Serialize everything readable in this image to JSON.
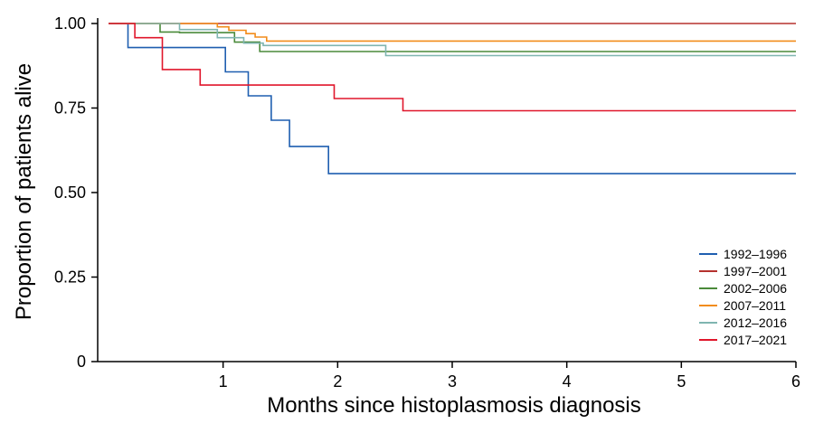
{
  "chart_data": {
    "type": "line",
    "step": true,
    "title": "",
    "xlabel": "Months since histoplasmosis diagnosis",
    "ylabel": "Proportion of patients alive",
    "xlim": [
      0,
      6
    ],
    "ylim": [
      0,
      1
    ],
    "x_ticks": [
      1,
      2,
      3,
      4,
      5,
      6
    ],
    "x_tick_labels": [
      "1",
      "2",
      "3",
      "4",
      "5",
      "6"
    ],
    "y_ticks": [
      0,
      0.25,
      0.5,
      0.75,
      1.0
    ],
    "y_tick_labels": [
      "0",
      "0.25",
      "0.50",
      "0.75",
      "1.00"
    ],
    "grid": false,
    "legend_position": "bottom-right",
    "series": [
      {
        "name": "1992–1996",
        "color": "#1f5fb0",
        "x": [
          0,
          0.17,
          0.17,
          1.02,
          1.02,
          1.22,
          1.22,
          1.42,
          1.42,
          1.58,
          1.58,
          1.92,
          1.92,
          6
        ],
        "y": [
          1.0,
          1.0,
          0.929,
          0.929,
          0.857,
          0.857,
          0.786,
          0.786,
          0.714,
          0.714,
          0.636,
          0.636,
          0.556,
          0.556
        ]
      },
      {
        "name": "1997–2001",
        "color": "#b5322e",
        "x": [
          0,
          6
        ],
        "y": [
          1.0,
          1.0
        ]
      },
      {
        "name": "2002–2006",
        "color": "#4a8a3a",
        "x": [
          0,
          0.45,
          0.45,
          0.62,
          0.62,
          1.1,
          1.1,
          1.32,
          1.32,
          6
        ],
        "y": [
          1.0,
          1.0,
          0.975,
          0.975,
          0.973,
          0.973,
          0.945,
          0.945,
          0.917,
          0.917
        ]
      },
      {
        "name": "2007–2011",
        "color": "#f28c1a",
        "x": [
          0,
          0.95,
          0.95,
          1.05,
          1.05,
          1.2,
          1.2,
          1.28,
          1.28,
          1.38,
          1.38,
          6
        ],
        "y": [
          1.0,
          1.0,
          0.99,
          0.99,
          0.98,
          0.98,
          0.97,
          0.97,
          0.96,
          0.96,
          0.948,
          0.948
        ]
      },
      {
        "name": "2012–2016",
        "color": "#7fb5b0",
        "x": [
          0,
          0.62,
          0.62,
          0.95,
          0.95,
          1.18,
          1.18,
          1.35,
          1.35,
          2.42,
          2.42,
          6
        ],
        "y": [
          1.0,
          1.0,
          0.982,
          0.982,
          0.958,
          0.958,
          0.942,
          0.942,
          0.935,
          0.935,
          0.905,
          0.905
        ]
      },
      {
        "name": "2017–2021",
        "color": "#e0162b",
        "x": [
          0,
          0.23,
          0.23,
          0.47,
          0.47,
          0.8,
          0.8,
          1.97,
          1.97,
          2.57,
          2.57,
          6
        ],
        "y": [
          1.0,
          1.0,
          0.958,
          0.958,
          0.864,
          0.864,
          0.818,
          0.818,
          0.778,
          0.778,
          0.742,
          0.742
        ]
      }
    ]
  }
}
